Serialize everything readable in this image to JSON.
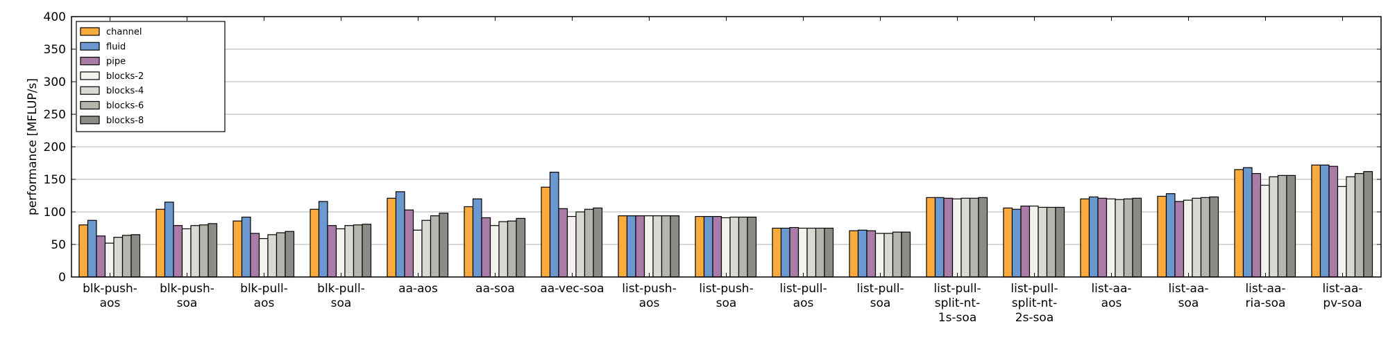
{
  "chart_data": {
    "type": "bar",
    "title": "",
    "xlabel": "",
    "ylabel": "performance [MFLUP/s]",
    "ylim": [
      0,
      400
    ],
    "yticks": [
      0,
      50,
      100,
      150,
      200,
      250,
      300,
      350,
      400
    ],
    "grid": "horizontal",
    "legend_position": "top-left",
    "categories": [
      [
        "blk-push-",
        "aos"
      ],
      [
        "blk-push-",
        "soa"
      ],
      [
        "blk-pull-",
        "aos"
      ],
      [
        "blk-pull-",
        "soa"
      ],
      [
        "aa-aos"
      ],
      [
        "aa-soa"
      ],
      [
        "aa-vec-soa"
      ],
      [
        "list-push-",
        "aos"
      ],
      [
        "list-push-",
        "soa"
      ],
      [
        "list-pull-",
        "aos"
      ],
      [
        "list-pull-",
        "soa"
      ],
      [
        "list-pull-",
        "split-nt-",
        "1s-soa"
      ],
      [
        "list-pull-",
        "split-nt-",
        "2s-soa"
      ],
      [
        "list-aa-",
        "aos"
      ],
      [
        "list-aa-",
        "soa"
      ],
      [
        "list-aa-",
        "ria-soa"
      ],
      [
        "list-aa-",
        "pv-soa"
      ]
    ],
    "series": [
      {
        "name": "channel",
        "color": "#f9ab3e",
        "values": [
          80,
          104,
          86,
          104,
          121,
          108,
          138,
          94,
          93,
          75,
          71,
          122,
          106,
          120,
          124,
          165,
          172
        ]
      },
      {
        "name": "fluid",
        "color": "#6b99cf",
        "values": [
          87,
          115,
          92,
          116,
          131,
          120,
          161,
          94,
          93,
          75,
          72,
          122,
          104,
          123,
          128,
          168,
          172
        ]
      },
      {
        "name": "pipe",
        "color": "#a97ca8",
        "values": [
          63,
          79,
          67,
          79,
          103,
          91,
          105,
          94,
          93,
          76,
          71,
          121,
          109,
          121,
          116,
          159,
          170
        ]
      },
      {
        "name": "blocks-2",
        "color": "#f4f2ef",
        "values": [
          52,
          74,
          59,
          74,
          72,
          79,
          93,
          94,
          91,
          75,
          67,
          120,
          109,
          120,
          118,
          141,
          139
        ]
      },
      {
        "name": "blocks-4",
        "color": "#d9d9d2",
        "values": [
          61,
          79,
          65,
          79,
          87,
          85,
          100,
          94,
          92,
          75,
          67,
          121,
          107,
          119,
          121,
          154,
          154
        ]
      },
      {
        "name": "blocks-6",
        "color": "#b5b5ad",
        "values": [
          64,
          80,
          68,
          80,
          94,
          86,
          104,
          94,
          92,
          75,
          69,
          121,
          107,
          120,
          122,
          156,
          159
        ]
      },
      {
        "name": "blocks-8",
        "color": "#8c8c87",
        "values": [
          65,
          82,
          70,
          81,
          98,
          90,
          106,
          94,
          92,
          75,
          69,
          122,
          107,
          121,
          123,
          156,
          162
        ]
      }
    ]
  }
}
